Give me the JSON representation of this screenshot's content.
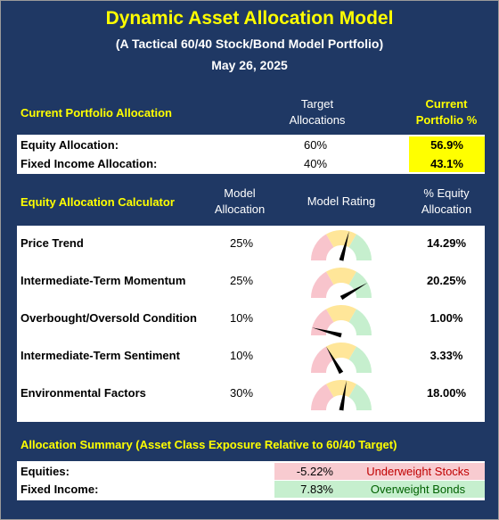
{
  "header": {
    "title": "Dynamic Asset Allocation Model",
    "subtitle": "(A Tactical 60/40 Stock/Bond Model Portfolio)",
    "date": "May 26, 2025"
  },
  "current": {
    "title": "Current Portfolio Allocation",
    "col_target": "Target Allocations",
    "col_current": "Current Portfolio %",
    "rows": [
      [
        "Equity Allocation:",
        "60%",
        "56.9%"
      ],
      [
        "Fixed Income Allocation:",
        "40%",
        "43.1%"
      ]
    ]
  },
  "calculator": {
    "title": "Equity Allocation Calculator",
    "col_model": "Model Allocation",
    "col_rating": "Model Rating",
    "col_pct": "% Equity Allocation",
    "rows": [
      [
        "Price Trend",
        "25%",
        "14.29%"
      ],
      [
        "Intermediate-Term Momentum",
        "25%",
        "20.25%"
      ],
      [
        "Overbought/Oversold Condition",
        "10%",
        "1.00%"
      ],
      [
        "Intermediate-Term Sentiment",
        "10%",
        "3.33%"
      ],
      [
        "Environmental Factors",
        "30%",
        "18.00%"
      ]
    ]
  },
  "summary": {
    "title": "Allocation Summary (Asset Class Exposure Relative to 60/40 Target)",
    "rows": [
      [
        "Equities:",
        "-5.22%",
        "Underweight Stocks"
      ],
      [
        "Fixed Income:",
        "7.83%",
        "Overweight Bonds"
      ]
    ]
  }
}
